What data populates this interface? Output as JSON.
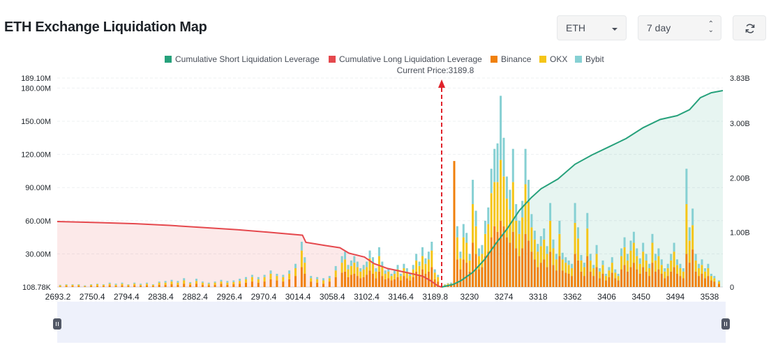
{
  "header": {
    "title": "ETH Exchange Liquidation Map",
    "asset_select": "ETH",
    "range_select": "7 day"
  },
  "chart_data": {
    "type": "bar",
    "title": "ETH Exchange Liquidation Map",
    "current_price_label": "Current Price:3189.8",
    "current_price": 3189.8,
    "legend": [
      "Cumulative Short Liquidation Leverage",
      "Cumulative Long Liquidation Leverage",
      "Binance",
      "OKX",
      "Bybit"
    ],
    "legend_position": "top-center",
    "colors": {
      "short": "#26a17b",
      "long": "#e5484d",
      "binance": "#f0800c",
      "okx": "#f5c518",
      "bybit": "#86d0d3"
    },
    "x_tick_labels": [
      "2693.2",
      "2750.4",
      "2794.4",
      "2838.4",
      "2882.4",
      "2926.4",
      "2970.4",
      "3014.4",
      "3058.4",
      "3102.4",
      "3146.4",
      "3189.8",
      "3230",
      "3274",
      "3318",
      "3362",
      "3406",
      "3450",
      "3494",
      "3538"
    ],
    "x_range": [
      2693.2,
      3553
    ],
    "y_left_tick_labels": [
      "108.78K",
      "30.00M",
      "60.00M",
      "90.00M",
      "120.00M",
      "150.00M",
      "180.00M",
      "189.10M"
    ],
    "y_left_range": [
      0,
      189.1
    ],
    "y_right_tick_labels": [
      "0",
      "1.00B",
      "2.00B",
      "3.00B",
      "3.83B"
    ],
    "y_right_range": [
      0,
      3.83
    ],
    "grid": true,
    "bars": [
      {
        "x": 2697,
        "binance": 0.5,
        "okx": 1,
        "bybit": 0.5
      },
      {
        "x": 2705,
        "binance": 1,
        "okx": 1,
        "bybit": 0.5
      },
      {
        "x": 2713,
        "binance": 1,
        "okx": 1,
        "bybit": 0.5
      },
      {
        "x": 2721,
        "binance": 1,
        "okx": 1,
        "bybit": 0.5
      },
      {
        "x": 2729,
        "binance": 0.5,
        "okx": 0.5,
        "bybit": 0.5
      },
      {
        "x": 2737,
        "binance": 1,
        "okx": 1,
        "bybit": 0.5
      },
      {
        "x": 2745,
        "binance": 1,
        "okx": 1.5,
        "bybit": 0.5
      },
      {
        "x": 2753,
        "binance": 1,
        "okx": 1,
        "bybit": 0.5
      },
      {
        "x": 2761,
        "binance": 1.5,
        "okx": 1.5,
        "bybit": 1
      },
      {
        "x": 2769,
        "binance": 1,
        "okx": 1,
        "bybit": 1
      },
      {
        "x": 2777,
        "binance": 1.5,
        "okx": 1.5,
        "bybit": 1
      },
      {
        "x": 2785,
        "binance": 1,
        "okx": 1,
        "bybit": 0.5
      },
      {
        "x": 2793,
        "binance": 1.5,
        "okx": 1.5,
        "bybit": 1
      },
      {
        "x": 2801,
        "binance": 1,
        "okx": 1,
        "bybit": 1
      },
      {
        "x": 2809,
        "binance": 1.5,
        "okx": 1.5,
        "bybit": 1
      },
      {
        "x": 2817,
        "binance": 1,
        "okx": 1,
        "bybit": 0.5
      },
      {
        "x": 2825,
        "binance": 2,
        "okx": 2,
        "bybit": 1
      },
      {
        "x": 2833,
        "binance": 2,
        "okx": 2,
        "bybit": 1.5
      },
      {
        "x": 2841,
        "binance": 2.5,
        "okx": 2.5,
        "bybit": 1.5
      },
      {
        "x": 2849,
        "binance": 2,
        "okx": 2,
        "bybit": 1.5
      },
      {
        "x": 2857,
        "binance": 3,
        "okx": 3,
        "bybit": 2
      },
      {
        "x": 2865,
        "binance": 2,
        "okx": 1.5,
        "bybit": 1
      },
      {
        "x": 2873,
        "binance": 3,
        "okx": 2.5,
        "bybit": 2
      },
      {
        "x": 2881,
        "binance": 2,
        "okx": 2,
        "bybit": 1
      },
      {
        "x": 2889,
        "binance": 1.5,
        "okx": 1.5,
        "bybit": 1
      },
      {
        "x": 2897,
        "binance": 2,
        "okx": 2,
        "bybit": 1
      },
      {
        "x": 2905,
        "binance": 3,
        "okx": 2,
        "bybit": 1.5
      },
      {
        "x": 2913,
        "binance": 2,
        "okx": 2,
        "bybit": 1.5
      },
      {
        "x": 2921,
        "binance": 2.5,
        "okx": 2,
        "bybit": 1.5
      },
      {
        "x": 2929,
        "binance": 3,
        "okx": 2.5,
        "bybit": 2
      },
      {
        "x": 2937,
        "binance": 4,
        "okx": 3,
        "bybit": 2
      },
      {
        "x": 2945,
        "binance": 5,
        "okx": 4,
        "bybit": 2
      },
      {
        "x": 2953,
        "binance": 4,
        "okx": 3,
        "bybit": 2
      },
      {
        "x": 2961,
        "binance": 5,
        "okx": 4,
        "bybit": 2
      },
      {
        "x": 2969,
        "binance": 7,
        "okx": 5,
        "bybit": 3
      },
      {
        "x": 2977,
        "binance": 6,
        "okx": 4,
        "bybit": 2
      },
      {
        "x": 2985,
        "binance": 5,
        "okx": 4,
        "bybit": 2
      },
      {
        "x": 2993,
        "binance": 7,
        "okx": 5,
        "bybit": 3
      },
      {
        "x": 3001,
        "binance": 10,
        "okx": 7,
        "bybit": 4
      },
      {
        "x": 3009,
        "binance": 18,
        "okx": 15,
        "bybit": 8
      },
      {
        "x": 3013,
        "binance": 12,
        "okx": 10,
        "bybit": 5
      },
      {
        "x": 3021,
        "binance": 5,
        "okx": 3,
        "bybit": 2
      },
      {
        "x": 3029,
        "binance": 4,
        "okx": 3,
        "bybit": 2
      },
      {
        "x": 3037,
        "binance": 3,
        "okx": 3,
        "bybit": 2
      },
      {
        "x": 3045,
        "binance": 5,
        "okx": 3,
        "bybit": 2
      },
      {
        "x": 3053,
        "binance": 9,
        "okx": 6,
        "bybit": 4
      },
      {
        "x": 3061,
        "binance": 13,
        "okx": 9,
        "bybit": 6
      },
      {
        "x": 3065,
        "binance": 14,
        "okx": 11,
        "bybit": 7
      },
      {
        "x": 3069,
        "binance": 9,
        "okx": 7,
        "bybit": 4
      },
      {
        "x": 3073,
        "binance": 11,
        "okx": 8,
        "bybit": 5
      },
      {
        "x": 3077,
        "binance": 12,
        "okx": 10,
        "bybit": 6
      },
      {
        "x": 3081,
        "binance": 10,
        "okx": 8,
        "bybit": 5
      },
      {
        "x": 3085,
        "binance": 8,
        "okx": 6,
        "bybit": 3
      },
      {
        "x": 3089,
        "binance": 9,
        "okx": 7,
        "bybit": 4
      },
      {
        "x": 3093,
        "binance": 11,
        "okx": 7,
        "bybit": 5
      },
      {
        "x": 3097,
        "binance": 15,
        "okx": 11,
        "bybit": 7
      },
      {
        "x": 3101,
        "binance": 12,
        "okx": 9,
        "bybit": 6
      },
      {
        "x": 3105,
        "binance": 8,
        "okx": 6,
        "bybit": 3
      },
      {
        "x": 3109,
        "binance": 14,
        "okx": 14,
        "bybit": 8
      },
      {
        "x": 3113,
        "binance": 10,
        "okx": 8,
        "bybit": 5
      },
      {
        "x": 3117,
        "binance": 7,
        "okx": 5,
        "bybit": 3
      },
      {
        "x": 3121,
        "binance": 8,
        "okx": 6,
        "bybit": 3
      },
      {
        "x": 3125,
        "binance": 6,
        "okx": 4,
        "bybit": 2
      },
      {
        "x": 3129,
        "binance": 7,
        "okx": 5,
        "bybit": 3
      },
      {
        "x": 3133,
        "binance": 9,
        "okx": 7,
        "bybit": 4
      },
      {
        "x": 3137,
        "binance": 6,
        "okx": 4,
        "bybit": 2
      },
      {
        "x": 3141,
        "binance": 10,
        "okx": 7,
        "bybit": 4
      },
      {
        "x": 3145,
        "binance": 8,
        "okx": 6,
        "bybit": 3
      },
      {
        "x": 3149,
        "binance": 6,
        "okx": 4,
        "bybit": 2
      },
      {
        "x": 3153,
        "binance": 9,
        "okx": 7,
        "bybit": 4
      },
      {
        "x": 3157,
        "binance": 14,
        "okx": 10,
        "bybit": 6
      },
      {
        "x": 3161,
        "binance": 11,
        "okx": 8,
        "bybit": 4
      },
      {
        "x": 3165,
        "binance": 16,
        "okx": 12,
        "bybit": 8
      },
      {
        "x": 3169,
        "binance": 12,
        "okx": 9,
        "bybit": 5
      },
      {
        "x": 3173,
        "binance": 14,
        "okx": 11,
        "bybit": 7
      },
      {
        "x": 3177,
        "binance": 18,
        "okx": 15,
        "bybit": 8
      },
      {
        "x": 3181,
        "binance": 7,
        "okx": 6,
        "bybit": 3
      },
      {
        "x": 3185,
        "binance": 5,
        "okx": 4,
        "bybit": 2
      },
      {
        "x": 3194,
        "binance": 1,
        "okx": 1,
        "bybit": 0.5
      },
      {
        "x": 3198,
        "binance": 2,
        "okx": 1,
        "bybit": 0.5
      },
      {
        "x": 3202,
        "binance": 2,
        "okx": 1,
        "bybit": 1
      },
      {
        "x": 3206,
        "binance": 114,
        "okx": 0,
        "bybit": 0
      },
      {
        "x": 3210,
        "binance": 25,
        "okx": 20,
        "bybit": 10
      },
      {
        "x": 3214,
        "binance": 16,
        "okx": 10,
        "bybit": 6
      },
      {
        "x": 3218,
        "binance": 25,
        "okx": 20,
        "bybit": 12
      },
      {
        "x": 3222,
        "binance": 22,
        "okx": 18,
        "bybit": 9
      },
      {
        "x": 3226,
        "binance": 14,
        "okx": 10,
        "bybit": 6
      },
      {
        "x": 3230,
        "binance": 40,
        "okx": 35,
        "bybit": 22
      },
      {
        "x": 3234,
        "binance": 30,
        "okx": 25,
        "bybit": 14
      },
      {
        "x": 3238,
        "binance": 16,
        "okx": 12,
        "bybit": 7
      },
      {
        "x": 3242,
        "binance": 18,
        "okx": 12,
        "bybit": 8
      },
      {
        "x": 3246,
        "binance": 28,
        "okx": 20,
        "bybit": 12
      },
      {
        "x": 3250,
        "binance": 32,
        "okx": 25,
        "bybit": 15
      },
      {
        "x": 3254,
        "binance": 45,
        "okx": 40,
        "bybit": 22
      },
      {
        "x": 3258,
        "binance": 55,
        "okx": 40,
        "bybit": 30
      },
      {
        "x": 3262,
        "binance": 50,
        "okx": 45,
        "bybit": 35
      },
      {
        "x": 3266,
        "binance": 60,
        "okx": 55,
        "bybit": 58
      },
      {
        "x": 3270,
        "binance": 55,
        "okx": 45,
        "bybit": 35
      },
      {
        "x": 3274,
        "binance": 45,
        "okx": 35,
        "bybit": 20
      },
      {
        "x": 3278,
        "binance": 40,
        "okx": 30,
        "bybit": 18
      },
      {
        "x": 3282,
        "binance": 50,
        "okx": 45,
        "bybit": 30
      },
      {
        "x": 3286,
        "binance": 35,
        "okx": 25,
        "bybit": 15
      },
      {
        "x": 3290,
        "binance": 28,
        "okx": 20,
        "bybit": 12
      },
      {
        "x": 3294,
        "binance": 35,
        "okx": 28,
        "bybit": 15
      },
      {
        "x": 3298,
        "binance": 48,
        "okx": 45,
        "bybit": 32
      },
      {
        "x": 3302,
        "binance": 42,
        "okx": 35,
        "bybit": 20
      },
      {
        "x": 3306,
        "binance": 32,
        "okx": 22,
        "bybit": 12
      },
      {
        "x": 3310,
        "binance": 25,
        "okx": 18,
        "bybit": 8
      },
      {
        "x": 3314,
        "binance": 18,
        "okx": 14,
        "bybit": 7
      },
      {
        "x": 3318,
        "binance": 22,
        "okx": 15,
        "bybit": 9
      },
      {
        "x": 3322,
        "binance": 25,
        "okx": 18,
        "bybit": 10
      },
      {
        "x": 3326,
        "binance": 18,
        "okx": 12,
        "bybit": 7
      },
      {
        "x": 3330,
        "binance": 32,
        "okx": 28,
        "bybit": 16
      },
      {
        "x": 3334,
        "binance": 20,
        "okx": 15,
        "bybit": 8
      },
      {
        "x": 3338,
        "binance": 15,
        "okx": 10,
        "bybit": 5
      },
      {
        "x": 3342,
        "binance": 28,
        "okx": 20,
        "bybit": 12
      },
      {
        "x": 3346,
        "binance": 15,
        "okx": 10,
        "bybit": 6
      },
      {
        "x": 3350,
        "binance": 13,
        "okx": 9,
        "bybit": 5
      },
      {
        "x": 3354,
        "binance": 12,
        "okx": 8,
        "bybit": 4
      },
      {
        "x": 3358,
        "binance": 10,
        "okx": 7,
        "bybit": 4
      },
      {
        "x": 3362,
        "binance": 30,
        "okx": 28,
        "bybit": 18
      },
      {
        "x": 3366,
        "binance": 24,
        "okx": 20,
        "bybit": 10
      },
      {
        "x": 3370,
        "binance": 14,
        "okx": 10,
        "bybit": 5
      },
      {
        "x": 3374,
        "binance": 10,
        "okx": 8,
        "bybit": 4
      },
      {
        "x": 3378,
        "binance": 28,
        "okx": 25,
        "bybit": 14
      },
      {
        "x": 3382,
        "binance": 14,
        "okx": 10,
        "bybit": 6
      },
      {
        "x": 3386,
        "binance": 10,
        "okx": 7,
        "bybit": 3
      },
      {
        "x": 3390,
        "binance": 18,
        "okx": 12,
        "bybit": 8
      },
      {
        "x": 3394,
        "binance": 8,
        "okx": 6,
        "bybit": 3
      },
      {
        "x": 3398,
        "binance": 12,
        "okx": 8,
        "bybit": 4
      },
      {
        "x": 3402,
        "binance": 6,
        "okx": 4,
        "bybit": 2
      },
      {
        "x": 3406,
        "binance": 9,
        "okx": 6,
        "bybit": 3
      },
      {
        "x": 3410,
        "binance": 13,
        "okx": 9,
        "bybit": 5
      },
      {
        "x": 3414,
        "binance": 8,
        "okx": 5,
        "bybit": 3
      },
      {
        "x": 3418,
        "binance": 6,
        "okx": 4,
        "bybit": 2
      },
      {
        "x": 3422,
        "binance": 16,
        "okx": 12,
        "bybit": 7
      },
      {
        "x": 3426,
        "binance": 20,
        "okx": 16,
        "bybit": 9
      },
      {
        "x": 3430,
        "binance": 14,
        "okx": 10,
        "bybit": 6
      },
      {
        "x": 3434,
        "binance": 18,
        "okx": 15,
        "bybit": 9
      },
      {
        "x": 3438,
        "binance": 22,
        "okx": 18,
        "bybit": 10
      },
      {
        "x": 3442,
        "binance": 16,
        "okx": 12,
        "bybit": 7
      },
      {
        "x": 3446,
        "binance": 12,
        "okx": 9,
        "bybit": 5
      },
      {
        "x": 3450,
        "binance": 18,
        "okx": 14,
        "bybit": 8
      },
      {
        "x": 3454,
        "binance": 14,
        "okx": 10,
        "bybit": 6
      },
      {
        "x": 3458,
        "binance": 10,
        "okx": 7,
        "bybit": 4
      },
      {
        "x": 3462,
        "binance": 22,
        "okx": 18,
        "bybit": 8
      },
      {
        "x": 3466,
        "binance": 14,
        "okx": 10,
        "bybit": 6
      },
      {
        "x": 3470,
        "binance": 16,
        "okx": 12,
        "bybit": 7
      },
      {
        "x": 3474,
        "binance": 12,
        "okx": 8,
        "bybit": 5
      },
      {
        "x": 3478,
        "binance": 8,
        "okx": 6,
        "bybit": 3
      },
      {
        "x": 3482,
        "binance": 10,
        "okx": 7,
        "bybit": 4
      },
      {
        "x": 3486,
        "binance": 14,
        "okx": 10,
        "bybit": 6
      },
      {
        "x": 3490,
        "binance": 18,
        "okx": 14,
        "bybit": 8
      },
      {
        "x": 3494,
        "binance": 12,
        "okx": 8,
        "bybit": 5
      },
      {
        "x": 3498,
        "binance": 10,
        "okx": 7,
        "bybit": 4
      },
      {
        "x": 3502,
        "binance": 8,
        "okx": 6,
        "bybit": 3
      },
      {
        "x": 3506,
        "binance": 30,
        "okx": 45,
        "bybit": 32
      },
      {
        "x": 3510,
        "binance": 22,
        "okx": 20,
        "bybit": 12
      },
      {
        "x": 3514,
        "binance": 34,
        "okx": 22,
        "bybit": 15
      },
      {
        "x": 3518,
        "binance": 14,
        "okx": 10,
        "bybit": 6
      },
      {
        "x": 3522,
        "binance": 10,
        "okx": 7,
        "bybit": 4
      },
      {
        "x": 3526,
        "binance": 12,
        "okx": 8,
        "bybit": 5
      },
      {
        "x": 3530,
        "binance": 8,
        "okx": 6,
        "bybit": 3
      },
      {
        "x": 3534,
        "binance": 10,
        "okx": 7,
        "bybit": 4
      },
      {
        "x": 3538,
        "binance": 6,
        "okx": 4,
        "bybit": 2
      },
      {
        "x": 3542,
        "binance": 5,
        "okx": 3,
        "bybit": 2
      },
      {
        "x": 3548,
        "binance": 3,
        "okx": 2,
        "bybit": 1
      }
    ],
    "cumulative_long": [
      {
        "x": 2693.2,
        "y": 1.2
      },
      {
        "x": 2750.4,
        "y": 1.18
      },
      {
        "x": 2794.4,
        "y": 1.16
      },
      {
        "x": 2838.4,
        "y": 1.13
      },
      {
        "x": 2882.4,
        "y": 1.09
      },
      {
        "x": 2926.4,
        "y": 1.05
      },
      {
        "x": 2970.4,
        "y": 1.0
      },
      {
        "x": 3010,
        "y": 0.95
      },
      {
        "x": 3014.4,
        "y": 0.82
      },
      {
        "x": 3040,
        "y": 0.76
      },
      {
        "x": 3058.4,
        "y": 0.72
      },
      {
        "x": 3070,
        "y": 0.62
      },
      {
        "x": 3090,
        "y": 0.55
      },
      {
        "x": 3102.4,
        "y": 0.43
      },
      {
        "x": 3120,
        "y": 0.34
      },
      {
        "x": 3146.4,
        "y": 0.26
      },
      {
        "x": 3165,
        "y": 0.2
      },
      {
        "x": 3175,
        "y": 0.12
      },
      {
        "x": 3185,
        "y": 0.02
      },
      {
        "x": 3189.8,
        "y": 0.0
      }
    ],
    "cumulative_short": [
      {
        "x": 3189.8,
        "y": 0.0
      },
      {
        "x": 3205,
        "y": 0.05
      },
      {
        "x": 3215,
        "y": 0.12
      },
      {
        "x": 3230,
        "y": 0.27
      },
      {
        "x": 3245,
        "y": 0.5
      },
      {
        "x": 3260,
        "y": 0.8
      },
      {
        "x": 3274,
        "y": 1.06
      },
      {
        "x": 3290,
        "y": 1.4
      },
      {
        "x": 3305,
        "y": 1.63
      },
      {
        "x": 3318,
        "y": 1.8
      },
      {
        "x": 3340,
        "y": 1.98
      },
      {
        "x": 3362,
        "y": 2.25
      },
      {
        "x": 3384,
        "y": 2.42
      },
      {
        "x": 3406,
        "y": 2.57
      },
      {
        "x": 3428,
        "y": 2.72
      },
      {
        "x": 3450,
        "y": 2.92
      },
      {
        "x": 3472,
        "y": 3.07
      },
      {
        "x": 3494,
        "y": 3.14
      },
      {
        "x": 3510,
        "y": 3.25
      },
      {
        "x": 3524,
        "y": 3.47
      },
      {
        "x": 3538,
        "y": 3.56
      },
      {
        "x": 3553,
        "y": 3.6
      }
    ]
  }
}
